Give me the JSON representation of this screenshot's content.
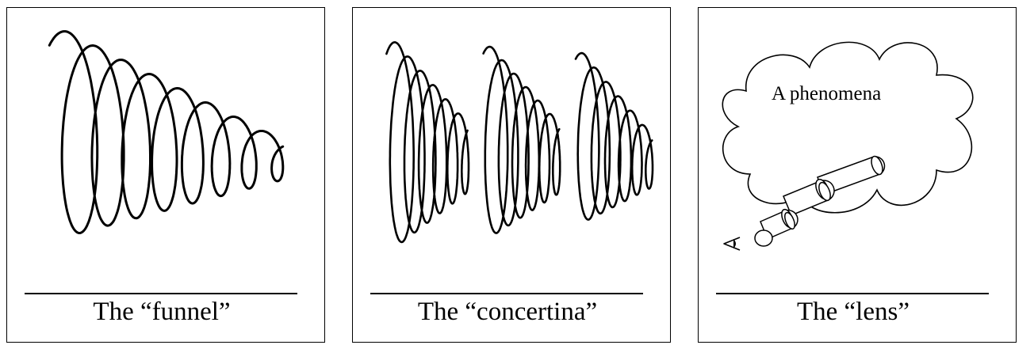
{
  "panels": [
    {
      "id": "funnel",
      "caption": "The “funnel”"
    },
    {
      "id": "concertina",
      "caption": "The “concertina”"
    },
    {
      "id": "lens",
      "caption": "The “lens”",
      "cloud_text": "A phenomena"
    }
  ],
  "colors": {
    "stroke": "#000000",
    "background": "#ffffff"
  },
  "icons": [
    "eye-icon",
    "lens-tube-icon",
    "cloud-shape"
  ]
}
